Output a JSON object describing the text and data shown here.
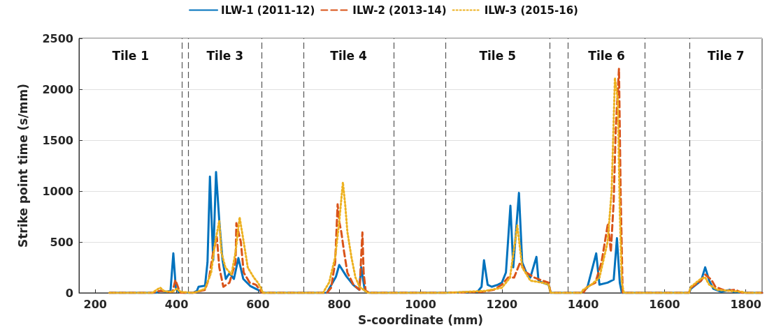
{
  "chart_data": {
    "type": "line",
    "xlabel": "S-coordinate (mm)",
    "ylabel": "Strike point time (s/mm)",
    "xlim": [
      160,
      1840
    ],
    "xticks": [
      200,
      400,
      600,
      800,
      1000,
      1200,
      1400,
      1600,
      1800
    ],
    "ylim": [
      0,
      2500
    ],
    "yticks": [
      0,
      500,
      1000,
      1500,
      2000,
      2500
    ],
    "grid": "y",
    "legend": "top",
    "series": [
      {
        "name": "ILW-1 (2011-12)",
        "color": "#0072bd",
        "line_style": "solid",
        "x": [
          235,
          300,
          350,
          360,
          375,
          385,
          392,
          398,
          405,
          420,
          440,
          450,
          454,
          470,
          476,
          482,
          490,
          497,
          505,
          513,
          521,
          530,
          541,
          552,
          564,
          581,
          598,
          609,
          615,
          765,
          770,
          775,
          792,
          800,
          818,
          834,
          849,
          854,
          863,
          874,
          1060,
          1140,
          1150,
          1156,
          1165,
          1175,
          1190,
          1200,
          1210,
          1221,
          1228,
          1242,
          1250,
          1260,
          1270,
          1285,
          1290,
          1300,
          1315,
          1320,
          1395,
          1410,
          1432,
          1440,
          1460,
          1475,
          1483,
          1490,
          1495,
          1660,
          1665,
          1690,
          1700,
          1710,
          1720,
          1740,
          1760,
          1770,
          1800,
          1840
        ],
        "values": [
          0,
          0,
          0,
          20,
          10,
          20,
          388,
          50,
          10,
          0,
          0,
          20,
          60,
          70,
          300,
          1142,
          320,
          1187,
          708,
          320,
          137,
          194,
          137,
          342,
          137,
          68,
          34,
          10,
          0,
          0,
          0,
          40,
          160,
          274,
          160,
          80,
          30,
          251,
          20,
          0,
          0,
          10,
          60,
          320,
          80,
          60,
          80,
          100,
          200,
          856,
          250,
          982,
          300,
          200,
          150,
          354,
          120,
          100,
          80,
          0,
          0,
          50,
          388,
          80,
          100,
          130,
          537,
          100,
          0,
          0,
          40,
          120,
          251,
          120,
          40,
          10,
          30,
          10,
          0,
          0
        ]
      },
      {
        "name": "ILW-2 (2013-14)",
        "color": "#d95319",
        "line_style": "dashed",
        "x": [
          235,
          340,
          360,
          380,
          390,
          397,
          405,
          410,
          440,
          470,
          480,
          490,
          499,
          505,
          515,
          530,
          545,
          547,
          558,
          565,
          580,
          595,
          605,
          610,
          770,
          780,
          790,
          796,
          800,
          805,
          812,
          820,
          835,
          850,
          857,
          860,
          865,
          875,
          1060,
          1150,
          1180,
          1200,
          1215,
          1230,
          1245,
          1260,
          1280,
          1300,
          1315,
          1320,
          1400,
          1410,
          1430,
          1445,
          1461,
          1468,
          1475,
          1480,
          1488,
          1492,
          1497,
          1660,
          1665,
          1690,
          1700,
          1715,
          1725,
          1750,
          1775,
          1790,
          1840
        ],
        "values": [
          0,
          0,
          20,
          10,
          10,
          126,
          40,
          0,
          0,
          30,
          150,
          400,
          548,
          250,
          60,
          100,
          300,
          685,
          500,
          200,
          100,
          80,
          30,
          0,
          0,
          50,
          300,
          870,
          700,
          600,
          400,
          200,
          80,
          30,
          594,
          200,
          20,
          0,
          0,
          10,
          30,
          80,
          150,
          150,
          300,
          200,
          150,
          120,
          100,
          0,
          0,
          60,
          100,
          300,
          685,
          400,
          900,
          1600,
          2203,
          1000,
          0,
          0,
          50,
          120,
          180,
          130,
          60,
          20,
          30,
          0,
          0
        ]
      },
      {
        "name": "ILW-3 (2015-16)",
        "color": "#edb120",
        "line_style": "dotted",
        "x": [
          235,
          340,
          355,
          360,
          370,
          390,
          400,
          410,
          440,
          450,
          470,
          485,
          495,
          505,
          510,
          520,
          535,
          545,
          555,
          565,
          575,
          590,
          600,
          607,
          612,
          760,
          775,
          790,
          800,
          809,
          815,
          820,
          830,
          840,
          850,
          860,
          870,
          1060,
          1160,
          1200,
          1220,
          1238,
          1250,
          1270,
          1300,
          1315,
          1320,
          1395,
          1400,
          1420,
          1440,
          1460,
          1470,
          1478,
          1485,
          1490,
          1495,
          1500,
          1660,
          1665,
          1690,
          1700,
          1710,
          1730,
          1760,
          1790,
          1800,
          1840
        ],
        "values": [
          0,
          0,
          40,
          50,
          15,
          10,
          40,
          10,
          0,
          10,
          40,
          200,
          500,
          708,
          400,
          250,
          180,
          400,
          742,
          500,
          250,
          150,
          100,
          50,
          0,
          0,
          100,
          350,
          700,
          1085,
          850,
          600,
          350,
          150,
          60,
          30,
          0,
          0,
          20,
          50,
          150,
          662,
          250,
          120,
          100,
          80,
          0,
          0,
          30,
          80,
          150,
          500,
          1000,
          2112,
          1900,
          800,
          100,
          0,
          0,
          60,
          140,
          150,
          80,
          30,
          20,
          10,
          0,
          0
        ]
      }
    ],
    "ref_lines": [
      {
        "axis": "x",
        "value": 414,
        "color": "#555555",
        "line_style": "dashed"
      },
      {
        "axis": "x",
        "value": 429,
        "color": "#555555",
        "line_style": "dashed"
      },
      {
        "axis": "x",
        "value": 609,
        "color": "#555555",
        "line_style": "dashed"
      },
      {
        "axis": "x",
        "value": 712,
        "color": "#555555",
        "line_style": "dashed"
      },
      {
        "axis": "x",
        "value": 934,
        "color": "#555555",
        "line_style": "dashed"
      },
      {
        "axis": "x",
        "value": 1062,
        "color": "#555555",
        "line_style": "dashed"
      },
      {
        "axis": "x",
        "value": 1317,
        "color": "#555555",
        "line_style": "dashed"
      },
      {
        "axis": "x",
        "value": 1363,
        "color": "#555555",
        "line_style": "dashed"
      },
      {
        "axis": "x",
        "value": 1552,
        "color": "#555555",
        "line_style": "dashed"
      },
      {
        "axis": "x",
        "value": 1662,
        "color": "#555555",
        "line_style": "dashed"
      }
    ],
    "annotations": [
      "Tile 1",
      "Tile 3",
      "Tile 4",
      "Tile 5",
      "Tile 6",
      "Tile 7"
    ]
  }
}
